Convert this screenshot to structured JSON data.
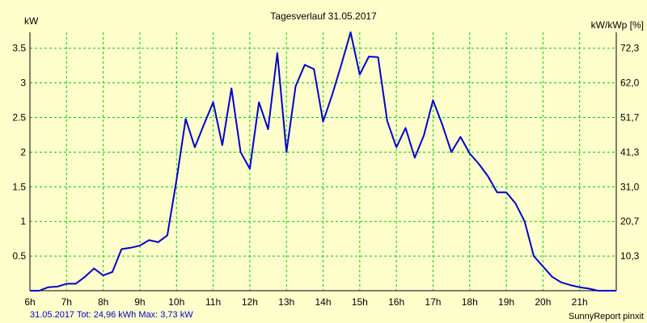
{
  "chart_data": {
    "type": "line",
    "title": "Tagesverlauf 31.05.2017",
    "ylabel_left": "kW",
    "ylabel_right": "kW/kWp [%]",
    "footer_left": "31.05.2017 Tot: 24,96 kWh Max: 3,73 kW",
    "footer_right": "SunnyReport pinxit",
    "xlim": [
      6,
      22
    ],
    "ylim": [
      0,
      3.73
    ],
    "x_ticks": [
      6,
      7,
      8,
      9,
      10,
      11,
      12,
      13,
      14,
      15,
      16,
      17,
      18,
      19,
      20,
      21
    ],
    "x_tick_labels": [
      "6h",
      "7h",
      "8h",
      "9h",
      "10h",
      "11h",
      "12h",
      "13h",
      "14h",
      "15h",
      "16h",
      "17h",
      "18h",
      "19h",
      "20h",
      "21h"
    ],
    "y_ticks": [
      0.5,
      1,
      1.5,
      2,
      2.5,
      3,
      3.5
    ],
    "y_tick_labels": [
      "0.5",
      "1",
      "1.5",
      "2",
      "2.5",
      "3",
      "3.5"
    ],
    "y2_tick_labels": [
      "10,3",
      "20,7",
      "31,0",
      "41,3",
      "51,7",
      "62,0",
      "72,3"
    ],
    "grid": true,
    "colors": {
      "background": "#ffffcc",
      "line": "#0000cc",
      "grid": "#00cc00",
      "axis": "#000000"
    },
    "series": [
      {
        "x": [
          6.0,
          6.25,
          6.5,
          6.75,
          7.0,
          7.25,
          7.5,
          7.75,
          8.0,
          8.25,
          8.5,
          8.75,
          9.0,
          9.25,
          9.5,
          9.75,
          10.0,
          10.25,
          10.5,
          10.75,
          11.0,
          11.25,
          11.5,
          11.75,
          12.0,
          12.25,
          12.5,
          12.75,
          13.0,
          13.25,
          13.5,
          13.75,
          14.0,
          14.25,
          14.5,
          14.75,
          15.0,
          15.25,
          15.5,
          15.75,
          16.0,
          16.25,
          16.5,
          16.75,
          17.0,
          17.25,
          17.5,
          17.75,
          18.0,
          18.25,
          18.5,
          18.75,
          19.0,
          19.25,
          19.5,
          19.75,
          20.0,
          20.25,
          20.5,
          20.75,
          21.0,
          21.25,
          21.5,
          21.75,
          22.0
        ],
        "y": [
          0.0,
          0.0,
          0.05,
          0.06,
          0.1,
          0.1,
          0.2,
          0.32,
          0.22,
          0.27,
          0.6,
          0.62,
          0.65,
          0.73,
          0.7,
          0.8,
          1.6,
          2.48,
          2.07,
          2.4,
          2.72,
          2.1,
          2.92,
          2.0,
          1.76,
          2.72,
          2.33,
          3.43,
          2.0,
          2.95,
          3.26,
          3.2,
          2.44,
          2.83,
          3.27,
          3.73,
          3.12,
          3.38,
          3.37,
          2.45,
          2.07,
          2.35,
          1.92,
          2.24,
          2.75,
          2.4,
          2.0,
          2.22,
          1.98,
          1.83,
          1.65,
          1.42,
          1.42,
          1.26,
          1.0,
          0.5,
          0.35,
          0.2,
          0.12,
          0.08,
          0.05,
          0.03,
          0.0,
          0.0,
          0.0
        ]
      }
    ]
  }
}
